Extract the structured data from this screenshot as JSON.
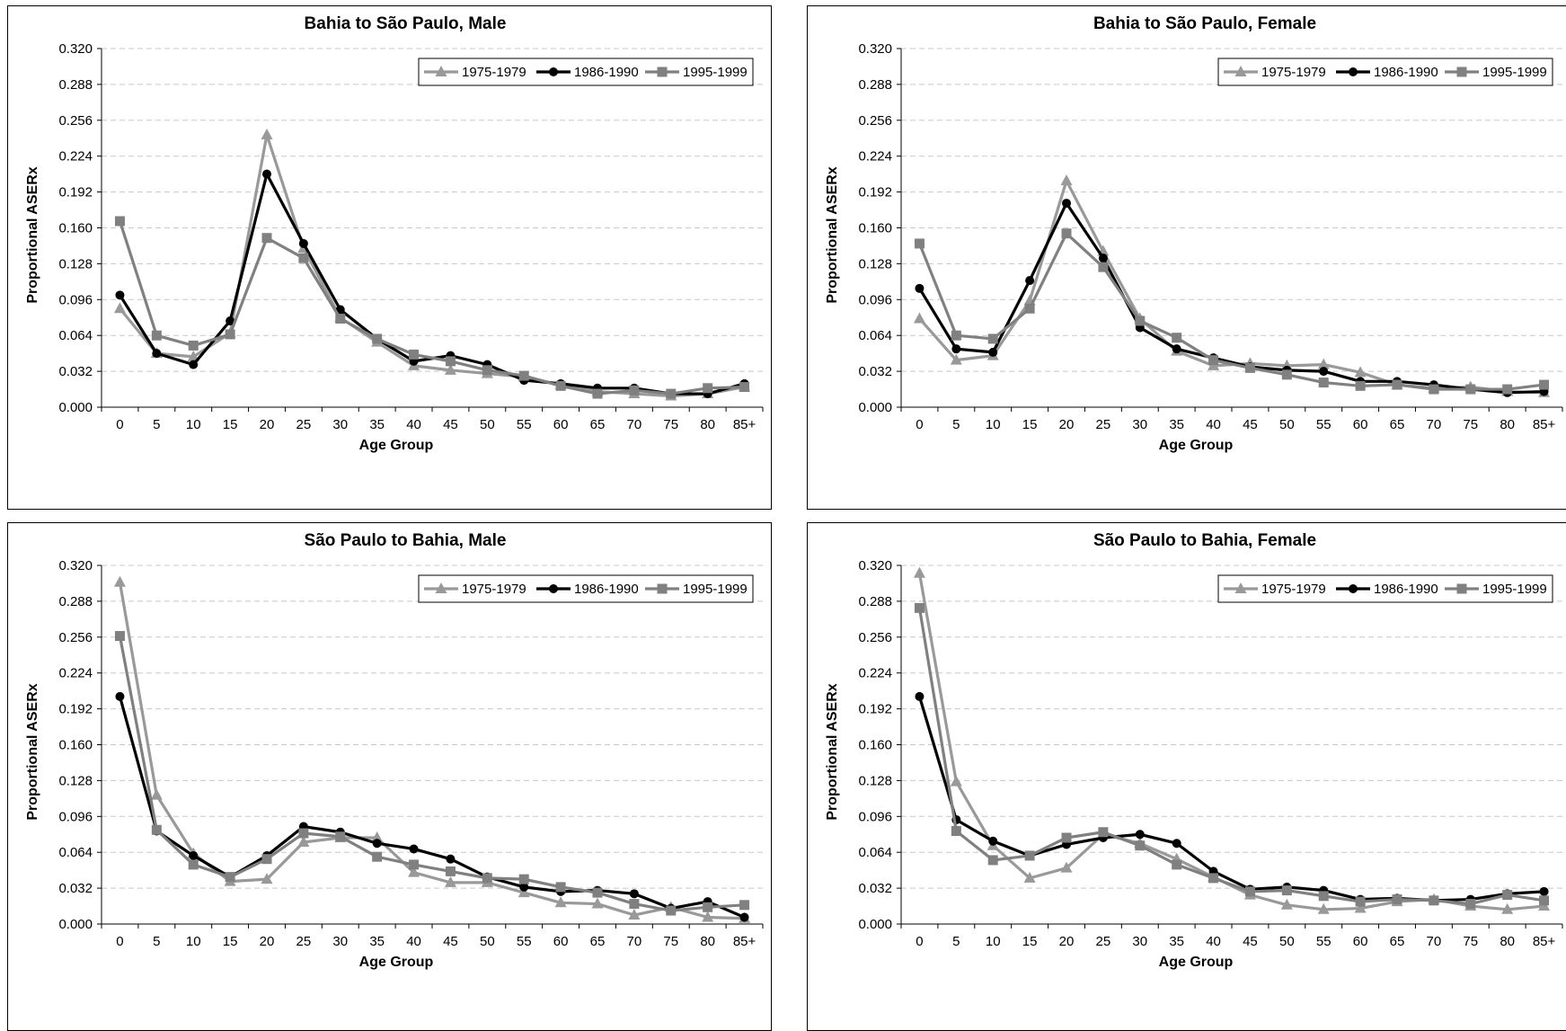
{
  "chart_data": [
    {
      "type": "line",
      "title": "Bahia to São Paulo, Male",
      "xlabel": "Age Group",
      "ylabel": "Proportional ASERx",
      "categories": [
        "0",
        "5",
        "10",
        "15",
        "20",
        "25",
        "30",
        "35",
        "40",
        "45",
        "50",
        "55",
        "60",
        "65",
        "70",
        "75",
        "80",
        "85+"
      ],
      "yticks": [
        "0.000",
        "0.032",
        "0.064",
        "0.096",
        "0.128",
        "0.160",
        "0.192",
        "0.224",
        "0.256",
        "0.288",
        "0.320"
      ],
      "ylim": [
        0,
        0.32
      ],
      "grid": "horizontal dashed",
      "legend": "top-right",
      "series": [
        {
          "name": "1975-1979",
          "values": [
            0.088,
            0.048,
            0.045,
            0.066,
            0.243,
            0.142,
            0.08,
            0.058,
            0.037,
            0.033,
            0.03,
            0.027,
            0.02,
            0.014,
            0.012,
            0.01,
            0.012,
            0.018
          ]
        },
        {
          "name": "1986-1990",
          "values": [
            0.1,
            0.048,
            0.038,
            0.077,
            0.208,
            0.146,
            0.087,
            0.061,
            0.041,
            0.046,
            0.038,
            0.024,
            0.021,
            0.017,
            0.017,
            0.012,
            0.012,
            0.021
          ]
        },
        {
          "name": "1995-1999",
          "values": [
            0.166,
            0.064,
            0.055,
            0.065,
            0.151,
            0.133,
            0.079,
            0.061,
            0.047,
            0.041,
            0.033,
            0.028,
            0.019,
            0.012,
            0.015,
            0.012,
            0.017,
            0.018
          ]
        }
      ]
    },
    {
      "type": "line",
      "title": "Bahia to São Paulo, Female",
      "xlabel": "Age Group",
      "ylabel": "Proportional ASERx",
      "categories": [
        "0",
        "5",
        "10",
        "15",
        "20",
        "25",
        "30",
        "35",
        "40",
        "45",
        "50",
        "55",
        "60",
        "65",
        "70",
        "75",
        "80",
        "85+"
      ],
      "yticks": [
        "0.000",
        "0.032",
        "0.064",
        "0.096",
        "0.128",
        "0.160",
        "0.192",
        "0.224",
        "0.256",
        "0.288",
        "0.320"
      ],
      "ylim": [
        0,
        0.32
      ],
      "grid": "horizontal dashed",
      "legend": "top-right",
      "series": [
        {
          "name": "1975-1979",
          "values": [
            0.079,
            0.042,
            0.046,
            0.095,
            0.202,
            0.139,
            0.079,
            0.05,
            0.037,
            0.039,
            0.037,
            0.038,
            0.031,
            0.02,
            0.017,
            0.018,
            0.014,
            0.013
          ]
        },
        {
          "name": "1986-1990",
          "values": [
            0.106,
            0.052,
            0.049,
            0.113,
            0.182,
            0.133,
            0.071,
            0.052,
            0.044,
            0.036,
            0.033,
            0.032,
            0.023,
            0.023,
            0.02,
            0.016,
            0.013,
            0.014
          ]
        },
        {
          "name": "1995-1999",
          "values": [
            0.146,
            0.064,
            0.061,
            0.088,
            0.155,
            0.125,
            0.077,
            0.062,
            0.042,
            0.035,
            0.029,
            0.022,
            0.019,
            0.02,
            0.016,
            0.016,
            0.016,
            0.02
          ]
        }
      ]
    },
    {
      "type": "line",
      "title": "São Paulo to Bahia, Male",
      "xlabel": "Age Group",
      "ylabel": "Proportional ASERx",
      "categories": [
        "0",
        "5",
        "10",
        "15",
        "20",
        "25",
        "30",
        "35",
        "40",
        "45",
        "50",
        "55",
        "60",
        "65",
        "70",
        "75",
        "80",
        "85+"
      ],
      "yticks": [
        "0.000",
        "0.032",
        "0.064",
        "0.096",
        "0.128",
        "0.160",
        "0.192",
        "0.224",
        "0.256",
        "0.288",
        "0.320"
      ],
      "ylim": [
        0,
        0.32
      ],
      "grid": "horizontal dashed",
      "legend": "top-right",
      "series": [
        {
          "name": "1975-1979",
          "values": [
            0.305,
            0.115,
            0.063,
            0.038,
            0.04,
            0.073,
            0.077,
            0.077,
            0.046,
            0.037,
            0.037,
            0.028,
            0.019,
            0.018,
            0.008,
            0.015,
            0.006,
            0.005
          ]
        },
        {
          "name": "1986-1990",
          "values": [
            0.203,
            0.083,
            0.061,
            0.042,
            0.061,
            0.087,
            0.082,
            0.072,
            0.067,
            0.058,
            0.042,
            0.033,
            0.029,
            0.03,
            0.027,
            0.014,
            0.02,
            0.006
          ]
        },
        {
          "name": "1995-1999",
          "values": [
            0.257,
            0.084,
            0.053,
            0.042,
            0.058,
            0.081,
            0.078,
            0.06,
            0.053,
            0.047,
            0.041,
            0.04,
            0.033,
            0.028,
            0.018,
            0.012,
            0.015,
            0.017
          ]
        }
      ]
    },
    {
      "type": "line",
      "title": "São Paulo to Bahia, Female",
      "xlabel": "Age Group",
      "ylabel": "Proportional ASERx",
      "categories": [
        "0",
        "5",
        "10",
        "15",
        "20",
        "25",
        "30",
        "35",
        "40",
        "45",
        "50",
        "55",
        "60",
        "65",
        "70",
        "75",
        "80",
        "85+"
      ],
      "yticks": [
        "0.000",
        "0.032",
        "0.064",
        "0.096",
        "0.128",
        "0.160",
        "0.192",
        "0.224",
        "0.256",
        "0.288",
        "0.320"
      ],
      "ylim": [
        0,
        0.32
      ],
      "grid": "horizontal dashed",
      "legend": "top-right",
      "series": [
        {
          "name": "1975-1979",
          "values": [
            0.313,
            0.127,
            0.07,
            0.041,
            0.05,
            0.08,
            0.072,
            0.058,
            0.042,
            0.026,
            0.017,
            0.013,
            0.014,
            0.02,
            0.022,
            0.016,
            0.013,
            0.016
          ]
        },
        {
          "name": "1986-1990",
          "values": [
            0.203,
            0.093,
            0.074,
            0.061,
            0.071,
            0.077,
            0.08,
            0.072,
            0.047,
            0.031,
            0.033,
            0.03,
            0.022,
            0.023,
            0.021,
            0.022,
            0.027,
            0.029
          ]
        },
        {
          "name": "1995-1999",
          "values": [
            0.282,
            0.083,
            0.057,
            0.061,
            0.077,
            0.082,
            0.07,
            0.053,
            0.041,
            0.029,
            0.03,
            0.025,
            0.02,
            0.022,
            0.021,
            0.018,
            0.026,
            0.021
          ]
        }
      ]
    }
  ],
  "style": {
    "series_colors": [
      "#999999",
      "#000000",
      "#808080"
    ],
    "series_markers": [
      "triangle",
      "circle",
      "square"
    ],
    "grid_color": "#c8c8c8",
    "axis_color": "#000000"
  }
}
